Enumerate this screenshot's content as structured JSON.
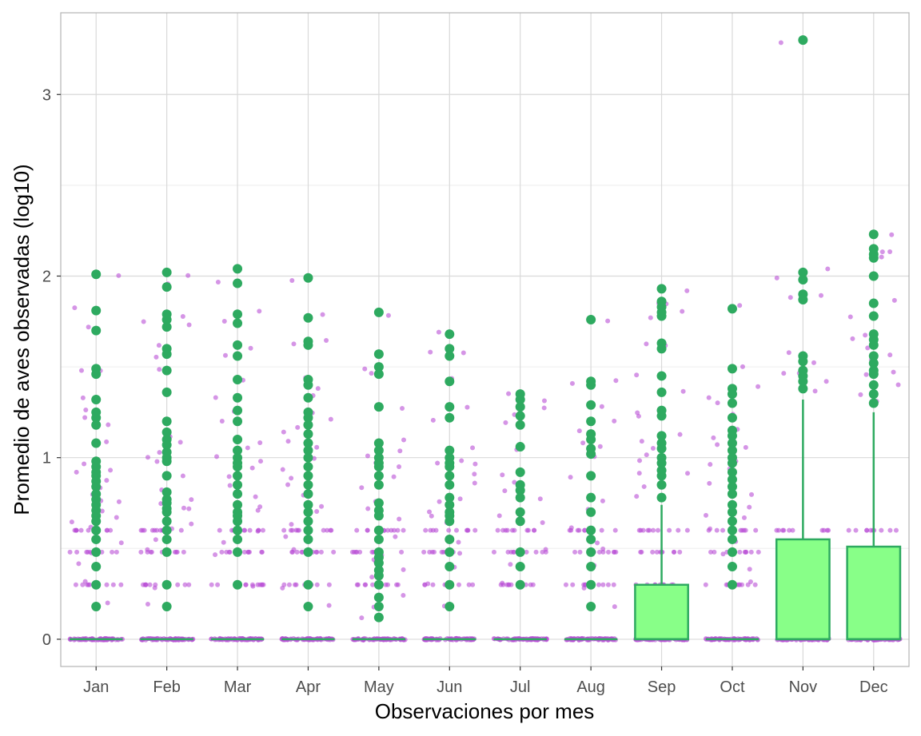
{
  "chart_data": {
    "type": "boxplot",
    "title": "",
    "xlabel": "Observaciones por mes",
    "ylabel": "Promedio de aves observadas (log10)",
    "categories": [
      "Jan",
      "Feb",
      "Mar",
      "Apr",
      "May",
      "Jun",
      "Jul",
      "Aug",
      "Sep",
      "Oct",
      "Nov",
      "Dec"
    ],
    "ylim": [
      -0.15,
      3.45
    ],
    "y_ticks": [
      0,
      1,
      2,
      3
    ],
    "grid": true,
    "legend": "none",
    "colors": {
      "jitter": "#b94fd6",
      "outlier": "#2eaa60",
      "box_fill": "#88ff88",
      "box_stroke": "#2eaa60",
      "grid_major": "#d9d9d9",
      "grid_minor": "#ededed",
      "panel_border": "#b3b3b3"
    },
    "boxes": [
      {
        "month": "Jan",
        "min": 0,
        "q1": 0,
        "median": 0,
        "q3": 0,
        "max": 0
      },
      {
        "month": "Feb",
        "min": 0,
        "q1": 0,
        "median": 0,
        "q3": 0,
        "max": 0
      },
      {
        "month": "Mar",
        "min": 0,
        "q1": 0,
        "median": 0,
        "q3": 0,
        "max": 0
      },
      {
        "month": "Apr",
        "min": 0,
        "q1": 0,
        "median": 0,
        "q3": 0,
        "max": 0
      },
      {
        "month": "May",
        "min": 0,
        "q1": 0,
        "median": 0,
        "q3": 0,
        "max": 0
      },
      {
        "month": "Jun",
        "min": 0,
        "q1": 0,
        "median": 0,
        "q3": 0,
        "max": 0
      },
      {
        "month": "Jul",
        "min": 0,
        "q1": 0,
        "median": 0,
        "q3": 0,
        "max": 0
      },
      {
        "month": "Aug",
        "min": 0,
        "q1": 0,
        "median": 0,
        "q3": 0,
        "max": 0
      },
      {
        "month": "Sep",
        "min": 0,
        "q1": 0,
        "median": 0,
        "q3": 0.3,
        "max": 0.74
      },
      {
        "month": "Oct",
        "min": 0,
        "q1": 0,
        "median": 0,
        "q3": 0,
        "max": 0
      },
      {
        "month": "Nov",
        "min": 0,
        "q1": 0,
        "median": 0,
        "q3": 0.55,
        "max": 1.32
      },
      {
        "month": "Dec",
        "min": 0,
        "q1": 0,
        "median": 0,
        "q3": 0.51,
        "max": 1.25
      }
    ],
    "outliers": [
      {
        "month": "Jan",
        "values": [
          2.01,
          1.81,
          1.7,
          1.49,
          1.46,
          1.32,
          1.25,
          1.22,
          1.18,
          1.08,
          0.98,
          0.95,
          0.92,
          0.9,
          0.87,
          0.84,
          0.8,
          0.77,
          0.74,
          0.71,
          0.68,
          0.65,
          0.6,
          0.55,
          0.48,
          0.4,
          0.3,
          0.18
        ]
      },
      {
        "month": "Feb",
        "values": [
          2.02,
          1.94,
          1.79,
          1.76,
          1.72,
          1.6,
          1.57,
          1.48,
          1.36,
          1.2,
          1.14,
          1.1,
          1.07,
          1.03,
          1.0,
          0.98,
          0.9,
          0.81,
          0.77,
          0.75,
          0.72,
          0.7,
          0.65,
          0.6,
          0.55,
          0.48,
          0.3,
          0.18
        ]
      },
      {
        "month": "Mar",
        "values": [
          2.04,
          1.96,
          1.79,
          1.74,
          1.62,
          1.56,
          1.43,
          1.33,
          1.26,
          1.2,
          1.1,
          1.04,
          1.0,
          0.97,
          0.95,
          0.9,
          0.85,
          0.8,
          0.74,
          0.7,
          0.68,
          0.65,
          0.6,
          0.55,
          0.48,
          0.3
        ]
      },
      {
        "month": "Apr",
        "values": [
          1.99,
          1.77,
          1.64,
          1.62,
          1.43,
          1.4,
          1.33,
          1.25,
          1.22,
          1.18,
          1.13,
          1.08,
          1.04,
          1.0,
          0.95,
          0.9,
          0.85,
          0.8,
          0.74,
          0.7,
          0.65,
          0.6,
          0.55,
          0.48,
          0.3,
          0.18
        ]
      },
      {
        "month": "May",
        "values": [
          1.8,
          1.57,
          1.5,
          1.46,
          1.28,
          1.08,
          1.04,
          1.0,
          0.97,
          0.95,
          0.9,
          0.85,
          0.75,
          0.71,
          0.68,
          0.6,
          0.55,
          0.48,
          0.45,
          0.42,
          0.38,
          0.35,
          0.3,
          0.23,
          0.18,
          0.12
        ]
      },
      {
        "month": "Jun",
        "values": [
          1.68,
          1.6,
          1.56,
          1.42,
          1.28,
          1.22,
          1.04,
          1.0,
          0.97,
          0.95,
          0.9,
          0.85,
          0.78,
          0.74,
          0.7,
          0.68,
          0.65,
          0.55,
          0.48,
          0.4,
          0.3,
          0.18
        ]
      },
      {
        "month": "Jul",
        "values": [
          1.35,
          1.32,
          1.28,
          1.23,
          1.18,
          1.06,
          0.92,
          0.85,
          0.82,
          0.78,
          0.7,
          0.65,
          0.48,
          0.4,
          0.3
        ]
      },
      {
        "month": "Aug",
        "values": [
          1.76,
          1.42,
          1.4,
          1.29,
          1.2,
          1.13,
          1.1,
          1.05,
          1.02,
          0.9,
          0.78,
          0.7,
          0.6,
          0.55,
          0.48,
          0.4,
          0.3,
          0.18
        ]
      },
      {
        "month": "Sep",
        "values": [
          1.93,
          1.86,
          1.83,
          1.8,
          1.78,
          1.63,
          1.6,
          1.45,
          1.36,
          1.26,
          1.23,
          1.12,
          1.08,
          1.05,
          1.0,
          0.97,
          0.93,
          0.9,
          0.85,
          0.78
        ]
      },
      {
        "month": "Oct",
        "values": [
          1.82,
          1.49,
          1.38,
          1.35,
          1.3,
          1.22,
          1.15,
          1.12,
          1.08,
          1.04,
          1.0,
          0.97,
          0.92,
          0.88,
          0.84,
          0.8,
          0.74,
          0.7,
          0.65,
          0.6,
          0.55,
          0.48,
          0.4,
          0.3
        ]
      },
      {
        "month": "Nov",
        "values": [
          3.3,
          2.02,
          1.98,
          1.9,
          1.87,
          1.56,
          1.53,
          1.48,
          1.45,
          1.42,
          1.38
        ]
      },
      {
        "month": "Dec",
        "values": [
          2.23,
          2.15,
          2.12,
          2.1,
          2.0,
          1.85,
          1.78,
          1.68,
          1.65,
          1.62,
          1.56,
          1.52,
          1.48,
          1.46,
          1.4,
          1.35,
          1.3
        ]
      }
    ]
  }
}
